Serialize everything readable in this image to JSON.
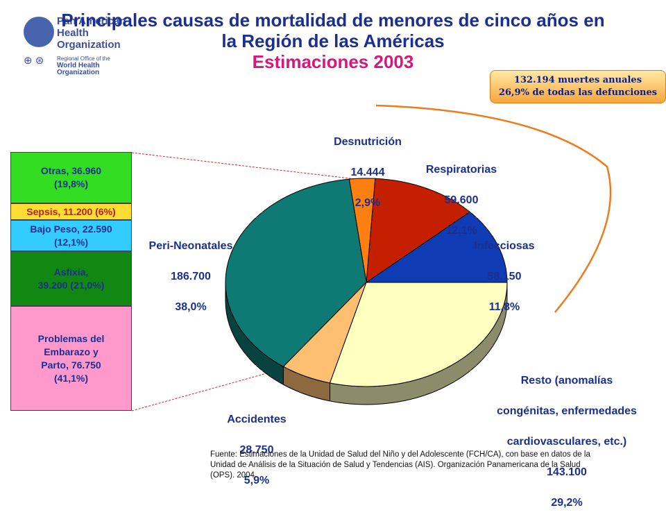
{
  "header": {
    "title_line1": "Principales causas de mortalidad de menores de cinco años en",
    "title_line2": "la Región de las Américas",
    "title_line3": "Estimaciones 2003"
  },
  "logo": {
    "name_line1": "Pan American",
    "name_line2": "Health",
    "name_line3": "Organization",
    "regional_line1": "Regional Office of the",
    "regional_line2": "World Health Organization"
  },
  "callout": {
    "line1": "132.194 muertes anuales",
    "line2": "26,9% de todas las defunciones"
  },
  "chart_data": {
    "type": "pie",
    "slices": [
      {
        "label": "Infecciosas",
        "value": 58150,
        "percent": "11,8%",
        "value_text": "58.150",
        "color": "#0f3cb4"
      },
      {
        "label": "Respiratorias",
        "value": 59600,
        "percent": "12,1%",
        "value_text": "59.600",
        "color": "#c42000"
      },
      {
        "label": "Desnutrición",
        "value": 14444,
        "percent": "2,9%",
        "value_text": "14.444",
        "color": "#ff7f10"
      },
      {
        "label": "Peri-Neonatales",
        "value": 186700,
        "percent": "38,0%",
        "value_text": "186.700",
        "color": "#0f7a74"
      },
      {
        "label": "Accidentes",
        "value": 28750,
        "percent": "5,9%",
        "value_text": "28.750",
        "color": "#ffbf70"
      },
      {
        "label": "Resto (anomalías congénitas, enfermedades cardiovasculares, etc.)",
        "value": 143100,
        "percent": "29,2%",
        "value_text": "143.100",
        "color": "#ffffc0"
      }
    ],
    "breakdown": {
      "parent": "Peri-Neonatales",
      "type": "stacked-bar",
      "items": [
        {
          "label": "Otras, 36.960 (19,8%)",
          "value": 36960,
          "percent": 19.8,
          "color": "#33dd22"
        },
        {
          "label": "Sepsis, 11.200 (6%)",
          "value": 11200,
          "percent": 6,
          "color": "#ffdd33"
        },
        {
          "label": "Bajo Peso, 22.590 (12,1%)",
          "value": 22590,
          "percent": 12.1,
          "color": "#33ccff"
        },
        {
          "label": "Asfixia, 39.200 (21,0%)",
          "value": 39200,
          "percent": 21.0,
          "color": "#118811"
        },
        {
          "label": "Problemas del Embarazo y Parto, 76.750 (41,1%)",
          "value": 76750,
          "percent": 41.1,
          "color": "#ff99cc"
        }
      ]
    }
  },
  "labels": {
    "infecciosas": {
      "name": "Infecciosas",
      "value": "58.150",
      "pct": "11,8%"
    },
    "respiratorias": {
      "name": "Respiratorias",
      "value": "59.600",
      "pct": "12,1%"
    },
    "desnutricion": {
      "name": "Desnutrición",
      "value": "14.444",
      "pct": "2,9%"
    },
    "perineonatales": {
      "name": "Peri-Neonatales",
      "value": "186.700",
      "pct": "38,0%"
    },
    "accidentes": {
      "name": "Accidentes",
      "value": "28.750",
      "pct": "5,9%"
    },
    "resto": {
      "line1": "Resto (anomalías",
      "line2": "congénitas, enfermedades",
      "line3": "cardiovasculares, etc.)",
      "value": "143.100",
      "pct": "29,2%"
    }
  },
  "stack_labels": {
    "otras": "Otras, 36.960\n(19,8%)",
    "sepsis": "Sepsis, 11.200 (6%)",
    "bajo_peso": "Bajo Peso, 22.590\n(12,1%)",
    "asfixia": "Asfixia,\n39.200 (21,0%)",
    "embarazo": "Problemas del\nEmbarazo y\nParto, 76.750\n(41,1%)"
  },
  "source": "Fuente: Estimaciones de la Unidad de Salud del Niño y del Adolescente (FCH/CA), con base en datos de la Unidad de Análisis de la Situación de Salud y Tendencias (AIS). Organización Panamericana de la Salud (OPS). 2004."
}
